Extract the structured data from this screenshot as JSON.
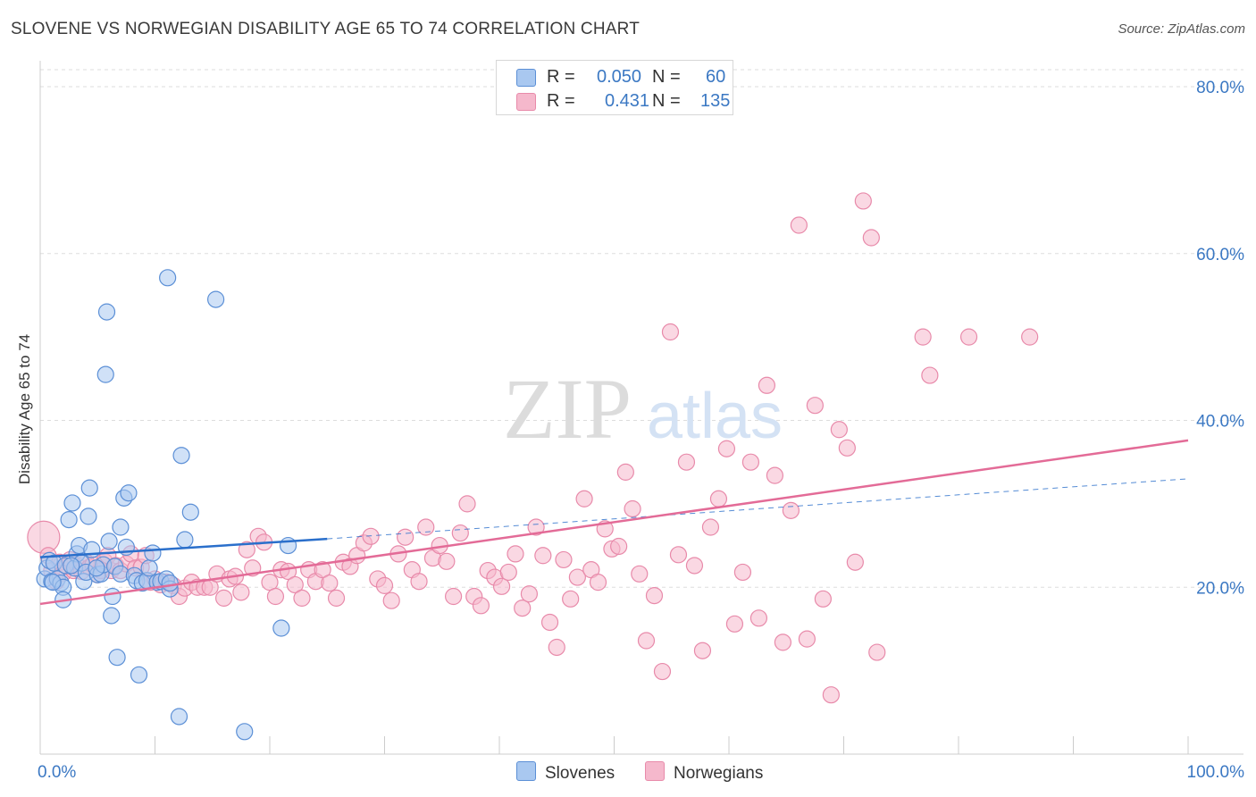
{
  "title": "SLOVENE VS NORWEGIAN DISABILITY AGE 65 TO 74 CORRELATION CHART",
  "source": "Source: ZipAtlas.com",
  "watermark": {
    "zip": "ZIP",
    "atlas": "atlas"
  },
  "colors": {
    "slovenes_fill": "#a9c8f0",
    "slovenes_stroke": "#5b8fd6",
    "slovenes_line": "#2a6fcb",
    "norwegians_fill": "#f5b8cc",
    "norwegians_stroke": "#e88aaa",
    "norwegians_line": "#e36b97",
    "tick_label": "#3b78c3",
    "grid": "#dddddd"
  },
  "legend": {
    "slovenes": {
      "r_label": "R =",
      "r_value": "0.050",
      "n_label": "N =",
      "n_value": "60"
    },
    "norwegians": {
      "r_label": "R =",
      "r_value": "0.431",
      "n_label": "N =",
      "n_value": "135"
    }
  },
  "chart_data": {
    "type": "scatter",
    "title": "SLOVENE VS NORWEGIAN DISABILITY AGE 65 TO 74 CORRELATION CHART",
    "xlabel": "",
    "ylabel": "Disability Age 65 to 74",
    "xlim": [
      0,
      100
    ],
    "ylim": [
      0,
      84
    ],
    "x_tick_labels": [
      "0.0%",
      "100.0%"
    ],
    "y_ticks": [
      20,
      40,
      60,
      80
    ],
    "y_tick_labels": [
      "20.0%",
      "40.0%",
      "60.0%",
      "80.0%"
    ],
    "grid": true,
    "legend_entries": [
      "Slovenes",
      "Norwegians"
    ],
    "series": [
      {
        "name": "Slovenes",
        "trend": {
          "x_start": 0,
          "y_start": 23.6,
          "x_solid_end": 25,
          "y_solid_end": 25.8,
          "x_end": 100,
          "y_end": 33
        },
        "points": [
          [
            0.4,
            21.0
          ],
          [
            0.6,
            22.3
          ],
          [
            0.8,
            23.2
          ],
          [
            1.0,
            20.7
          ],
          [
            1.2,
            22.9
          ],
          [
            1.5,
            21.0
          ],
          [
            1.8,
            20.5
          ],
          [
            2.0,
            20.0
          ],
          [
            2.2,
            22.6
          ],
          [
            2.0,
            18.5
          ],
          [
            2.5,
            28.1
          ],
          [
            2.8,
            30.1
          ],
          [
            3.0,
            22.3
          ],
          [
            3.2,
            24.0
          ],
          [
            3.4,
            25.0
          ],
          [
            3.6,
            22.9
          ],
          [
            3.8,
            20.7
          ],
          [
            4.0,
            21.8
          ],
          [
            4.2,
            28.5
          ],
          [
            4.3,
            31.9
          ],
          [
            4.5,
            24.5
          ],
          [
            5.0,
            21.5
          ],
          [
            5.3,
            21.6
          ],
          [
            5.5,
            22.7
          ],
          [
            5.7,
            45.5
          ],
          [
            5.8,
            53.0
          ],
          [
            6.0,
            25.5
          ],
          [
            6.2,
            16.6
          ],
          [
            6.3,
            18.9
          ],
          [
            6.5,
            22.5
          ],
          [
            6.7,
            11.6
          ],
          [
            7.0,
            21.6
          ],
          [
            7.0,
            27.2
          ],
          [
            7.3,
            30.7
          ],
          [
            7.5,
            24.8
          ],
          [
            7.7,
            31.3
          ],
          [
            8.2,
            21.4
          ],
          [
            8.4,
            20.8
          ],
          [
            8.6,
            9.5
          ],
          [
            8.9,
            20.5
          ],
          [
            9.3,
            20.8
          ],
          [
            9.5,
            22.3
          ],
          [
            9.8,
            24.1
          ],
          [
            10.2,
            20.6
          ],
          [
            10.5,
            20.7
          ],
          [
            11.0,
            21.0
          ],
          [
            11.3,
            19.8
          ],
          [
            11.3,
            20.5
          ],
          [
            11.1,
            57.1
          ],
          [
            12.1,
            4.5
          ],
          [
            12.3,
            35.8
          ],
          [
            12.6,
            25.7
          ],
          [
            13.1,
            29.0
          ],
          [
            15.3,
            54.5
          ],
          [
            17.8,
            2.7
          ],
          [
            21.0,
            15.1
          ],
          [
            21.6,
            25.0
          ],
          [
            1.1,
            20.6
          ],
          [
            2.7,
            22.6
          ],
          [
            4.9,
            22.3
          ]
        ]
      },
      {
        "name": "Norwegians",
        "trend": {
          "x_start": 0,
          "y_start": 18.0,
          "x_end": 100,
          "y_end": 37.6
        },
        "points": [
          [
            0.3,
            26.0
          ],
          [
            0.7,
            23.8
          ],
          [
            1.0,
            22.0
          ],
          [
            1.4,
            20.7
          ],
          [
            1.7,
            23.0
          ],
          [
            2.0,
            21.7
          ],
          [
            2.3,
            22.5
          ],
          [
            2.6,
            23.3
          ],
          [
            2.9,
            22.0
          ],
          [
            3.2,
            22.6
          ],
          [
            3.6,
            21.9
          ],
          [
            4.0,
            23.0
          ],
          [
            4.3,
            22.4
          ],
          [
            4.6,
            22.7
          ],
          [
            5.0,
            21.5
          ],
          [
            5.3,
            22.0
          ],
          [
            5.6,
            23.1
          ],
          [
            5.9,
            23.8
          ],
          [
            6.2,
            22.0
          ],
          [
            6.6,
            22.6
          ],
          [
            7.0,
            22.0
          ],
          [
            7.5,
            22.8
          ],
          [
            7.9,
            24.0
          ],
          [
            8.3,
            22.3
          ],
          [
            8.8,
            22.4
          ],
          [
            9.2,
            23.8
          ],
          [
            9.6,
            20.6
          ],
          [
            10.0,
            21.0
          ],
          [
            10.5,
            20.3
          ],
          [
            11.0,
            20.6
          ],
          [
            11.6,
            20.2
          ],
          [
            12.1,
            18.9
          ],
          [
            12.6,
            19.9
          ],
          [
            13.2,
            20.6
          ],
          [
            13.7,
            20.0
          ],
          [
            14.3,
            20.0
          ],
          [
            14.8,
            20.0
          ],
          [
            15.4,
            21.6
          ],
          [
            16.0,
            18.7
          ],
          [
            16.5,
            21.0
          ],
          [
            17.0,
            21.3
          ],
          [
            17.5,
            19.4
          ],
          [
            18.0,
            24.5
          ],
          [
            18.5,
            22.3
          ],
          [
            19.0,
            26.1
          ],
          [
            19.5,
            25.4
          ],
          [
            20.0,
            20.6
          ],
          [
            20.5,
            18.9
          ],
          [
            21.0,
            22.1
          ],
          [
            21.6,
            21.9
          ],
          [
            22.2,
            20.3
          ],
          [
            22.8,
            18.7
          ],
          [
            23.4,
            22.1
          ],
          [
            24.0,
            20.7
          ],
          [
            24.6,
            22.1
          ],
          [
            25.2,
            20.5
          ],
          [
            25.8,
            18.7
          ],
          [
            26.4,
            23.0
          ],
          [
            27.0,
            22.5
          ],
          [
            27.6,
            23.8
          ],
          [
            28.2,
            25.3
          ],
          [
            28.8,
            26.1
          ],
          [
            29.4,
            21.0
          ],
          [
            30.0,
            20.2
          ],
          [
            30.6,
            18.4
          ],
          [
            31.2,
            24.0
          ],
          [
            31.8,
            26.0
          ],
          [
            32.4,
            22.1
          ],
          [
            33.0,
            20.7
          ],
          [
            33.6,
            27.2
          ],
          [
            34.2,
            23.5
          ],
          [
            34.8,
            25.0
          ],
          [
            35.4,
            23.1
          ],
          [
            36.0,
            18.9
          ],
          [
            36.6,
            26.5
          ],
          [
            37.2,
            30.0
          ],
          [
            37.8,
            18.9
          ],
          [
            38.4,
            17.8
          ],
          [
            39.0,
            22.0
          ],
          [
            39.6,
            21.2
          ],
          [
            40.2,
            20.1
          ],
          [
            40.8,
            21.8
          ],
          [
            41.4,
            24.0
          ],
          [
            42.0,
            17.5
          ],
          [
            42.6,
            19.2
          ],
          [
            43.2,
            27.2
          ],
          [
            43.8,
            23.8
          ],
          [
            44.4,
            15.8
          ],
          [
            45.0,
            12.8
          ],
          [
            45.6,
            23.3
          ],
          [
            46.2,
            18.6
          ],
          [
            46.8,
            21.2
          ],
          [
            47.4,
            30.6
          ],
          [
            48.0,
            22.1
          ],
          [
            48.6,
            20.6
          ],
          [
            49.2,
            27.0
          ],
          [
            49.8,
            24.6
          ],
          [
            50.4,
            24.9
          ],
          [
            51.0,
            33.8
          ],
          [
            51.6,
            29.4
          ],
          [
            52.2,
            21.6
          ],
          [
            52.8,
            13.6
          ],
          [
            53.5,
            19.0
          ],
          [
            54.2,
            9.9
          ],
          [
            54.9,
            50.6
          ],
          [
            55.6,
            23.9
          ],
          [
            56.3,
            35.0
          ],
          [
            57.0,
            22.6
          ],
          [
            57.7,
            12.4
          ],
          [
            58.4,
            27.2
          ],
          [
            59.1,
            30.6
          ],
          [
            59.8,
            36.6
          ],
          [
            60.5,
            15.6
          ],
          [
            61.2,
            21.8
          ],
          [
            61.9,
            35.0
          ],
          [
            62.6,
            16.3
          ],
          [
            63.3,
            44.2
          ],
          [
            64.0,
            33.4
          ],
          [
            64.7,
            13.4
          ],
          [
            65.4,
            29.2
          ],
          [
            66.1,
            63.4
          ],
          [
            66.8,
            13.8
          ],
          [
            67.5,
            41.8
          ],
          [
            68.2,
            18.6
          ],
          [
            68.9,
            7.1
          ],
          [
            69.6,
            38.9
          ],
          [
            70.3,
            36.7
          ],
          [
            71.0,
            23.0
          ],
          [
            71.7,
            66.3
          ],
          [
            72.4,
            61.9
          ],
          [
            72.9,
            12.2
          ],
          [
            76.9,
            50.0
          ],
          [
            77.5,
            45.4
          ],
          [
            80.9,
            50.0
          ],
          [
            86.2,
            50.0
          ]
        ]
      }
    ]
  },
  "bottom_legend": {
    "slovenes": "Slovenes",
    "norwegians": "Norwegians"
  }
}
